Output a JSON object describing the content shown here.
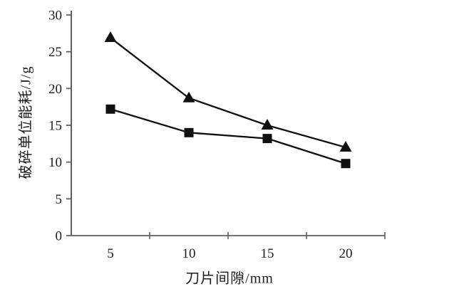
{
  "page": {
    "background": "#ffffff"
  },
  "chart_data": {
    "type": "line",
    "title": "",
    "xlabel": "刀片间隙/mm",
    "ylabel": "破碎单位能耗/J/g",
    "categories": [
      "5",
      "10",
      "15",
      "20"
    ],
    "series": [
      {
        "name": "upper-curve-triangles",
        "marker": "triangle",
        "color": "#111111",
        "values": [
          26.9,
          18.7,
          15.0,
          12.0
        ]
      },
      {
        "name": "lower-curve-squares",
        "marker": "square",
        "color": "#111111",
        "values": [
          17.2,
          14.0,
          13.2,
          9.8
        ]
      }
    ],
    "ylim": [
      0,
      30
    ],
    "yticks": [
      0,
      5,
      10,
      15,
      20,
      25,
      30
    ],
    "grid": false,
    "legend_position": "none",
    "axis_color": "#5f5f5f",
    "text_color": "#1d1d1d"
  }
}
